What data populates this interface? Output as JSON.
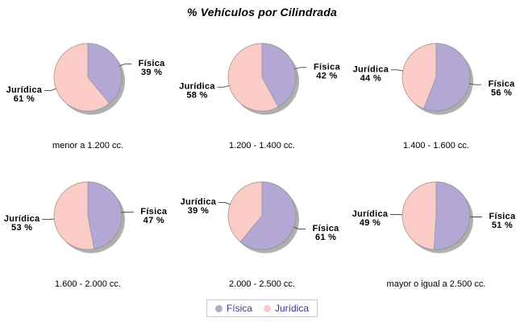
{
  "title": "% Vehículos por Cilindrada",
  "legend": {
    "items": [
      {
        "label": "Física",
        "color": "#b2a8d3"
      },
      {
        "label": "Jurídica",
        "color": "#fbcbc8"
      }
    ],
    "text_color": "#4b2d8f"
  },
  "style": {
    "slice_colors": [
      "#b2a8d3",
      "#fbcbc8"
    ],
    "shadow_color": "#a1a1a1",
    "edge_color": "#8f8f8f",
    "leader_color": "#444444"
  },
  "chart_data": [
    {
      "type": "pie",
      "title": "menor a 1.200 cc.",
      "labels": [
        "Física",
        "Jurídica"
      ],
      "values": [
        39,
        61
      ],
      "unit": "%",
      "start_angle": "top",
      "direction": "clockwise"
    },
    {
      "type": "pie",
      "title": "1.200 - 1.400 cc.",
      "labels": [
        "Física",
        "Jurídica"
      ],
      "values": [
        42,
        58
      ],
      "unit": "%",
      "start_angle": "top",
      "direction": "clockwise"
    },
    {
      "type": "pie",
      "title": "1.400 - 1.600 cc.",
      "labels": [
        "Física",
        "Jurídica"
      ],
      "values": [
        56,
        44
      ],
      "unit": "%",
      "start_angle": "top",
      "direction": "clockwise"
    },
    {
      "type": "pie",
      "title": "1.600 - 2.000 cc.",
      "labels": [
        "Física",
        "Jurídica"
      ],
      "values": [
        47,
        53
      ],
      "unit": "%",
      "start_angle": "top",
      "direction": "clockwise"
    },
    {
      "type": "pie",
      "title": "2.000 - 2.500 cc.",
      "labels": [
        "Física",
        "Jurídica"
      ],
      "values": [
        61,
        39
      ],
      "unit": "%",
      "start_angle": "top",
      "direction": "clockwise"
    },
    {
      "type": "pie",
      "title": "mayor o igual a 2.500 cc.",
      "labels": [
        "Física",
        "Jurídica"
      ],
      "values": [
        51,
        49
      ],
      "unit": "%",
      "start_angle": "top",
      "direction": "clockwise"
    }
  ]
}
